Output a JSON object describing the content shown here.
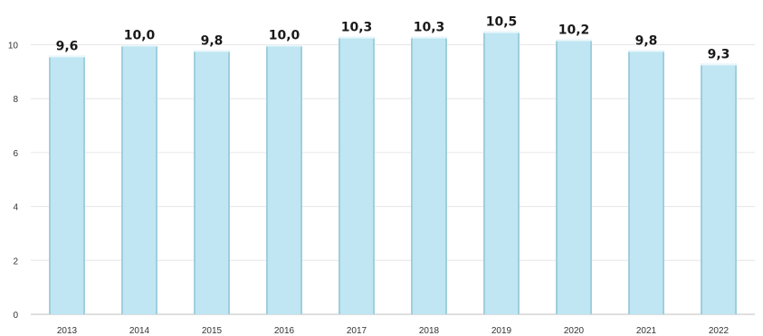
{
  "chart_data": {
    "type": "bar",
    "categories": [
      "2013",
      "2014",
      "2015",
      "2016",
      "2017",
      "2018",
      "2019",
      "2020",
      "2021",
      "2022"
    ],
    "values": [
      9.6,
      10.0,
      9.8,
      10.0,
      10.3,
      10.3,
      10.5,
      10.2,
      9.8,
      9.3
    ],
    "data_labels": [
      "9,6",
      "10,0",
      "9,8",
      "10,0",
      "10,3",
      "10,3",
      "10,5",
      "10,2",
      "9,8",
      "9,3"
    ],
    "y_ticks": [
      0,
      2,
      4,
      6,
      8,
      10
    ],
    "ylim": [
      0,
      12
    ],
    "grid": true,
    "legend": "none",
    "bar_color": "#bfe6f2",
    "bar_edge_color": "#9fcfdd",
    "label_color": "#1a1a1a",
    "title": "",
    "xlabel": "",
    "ylabel": ""
  }
}
